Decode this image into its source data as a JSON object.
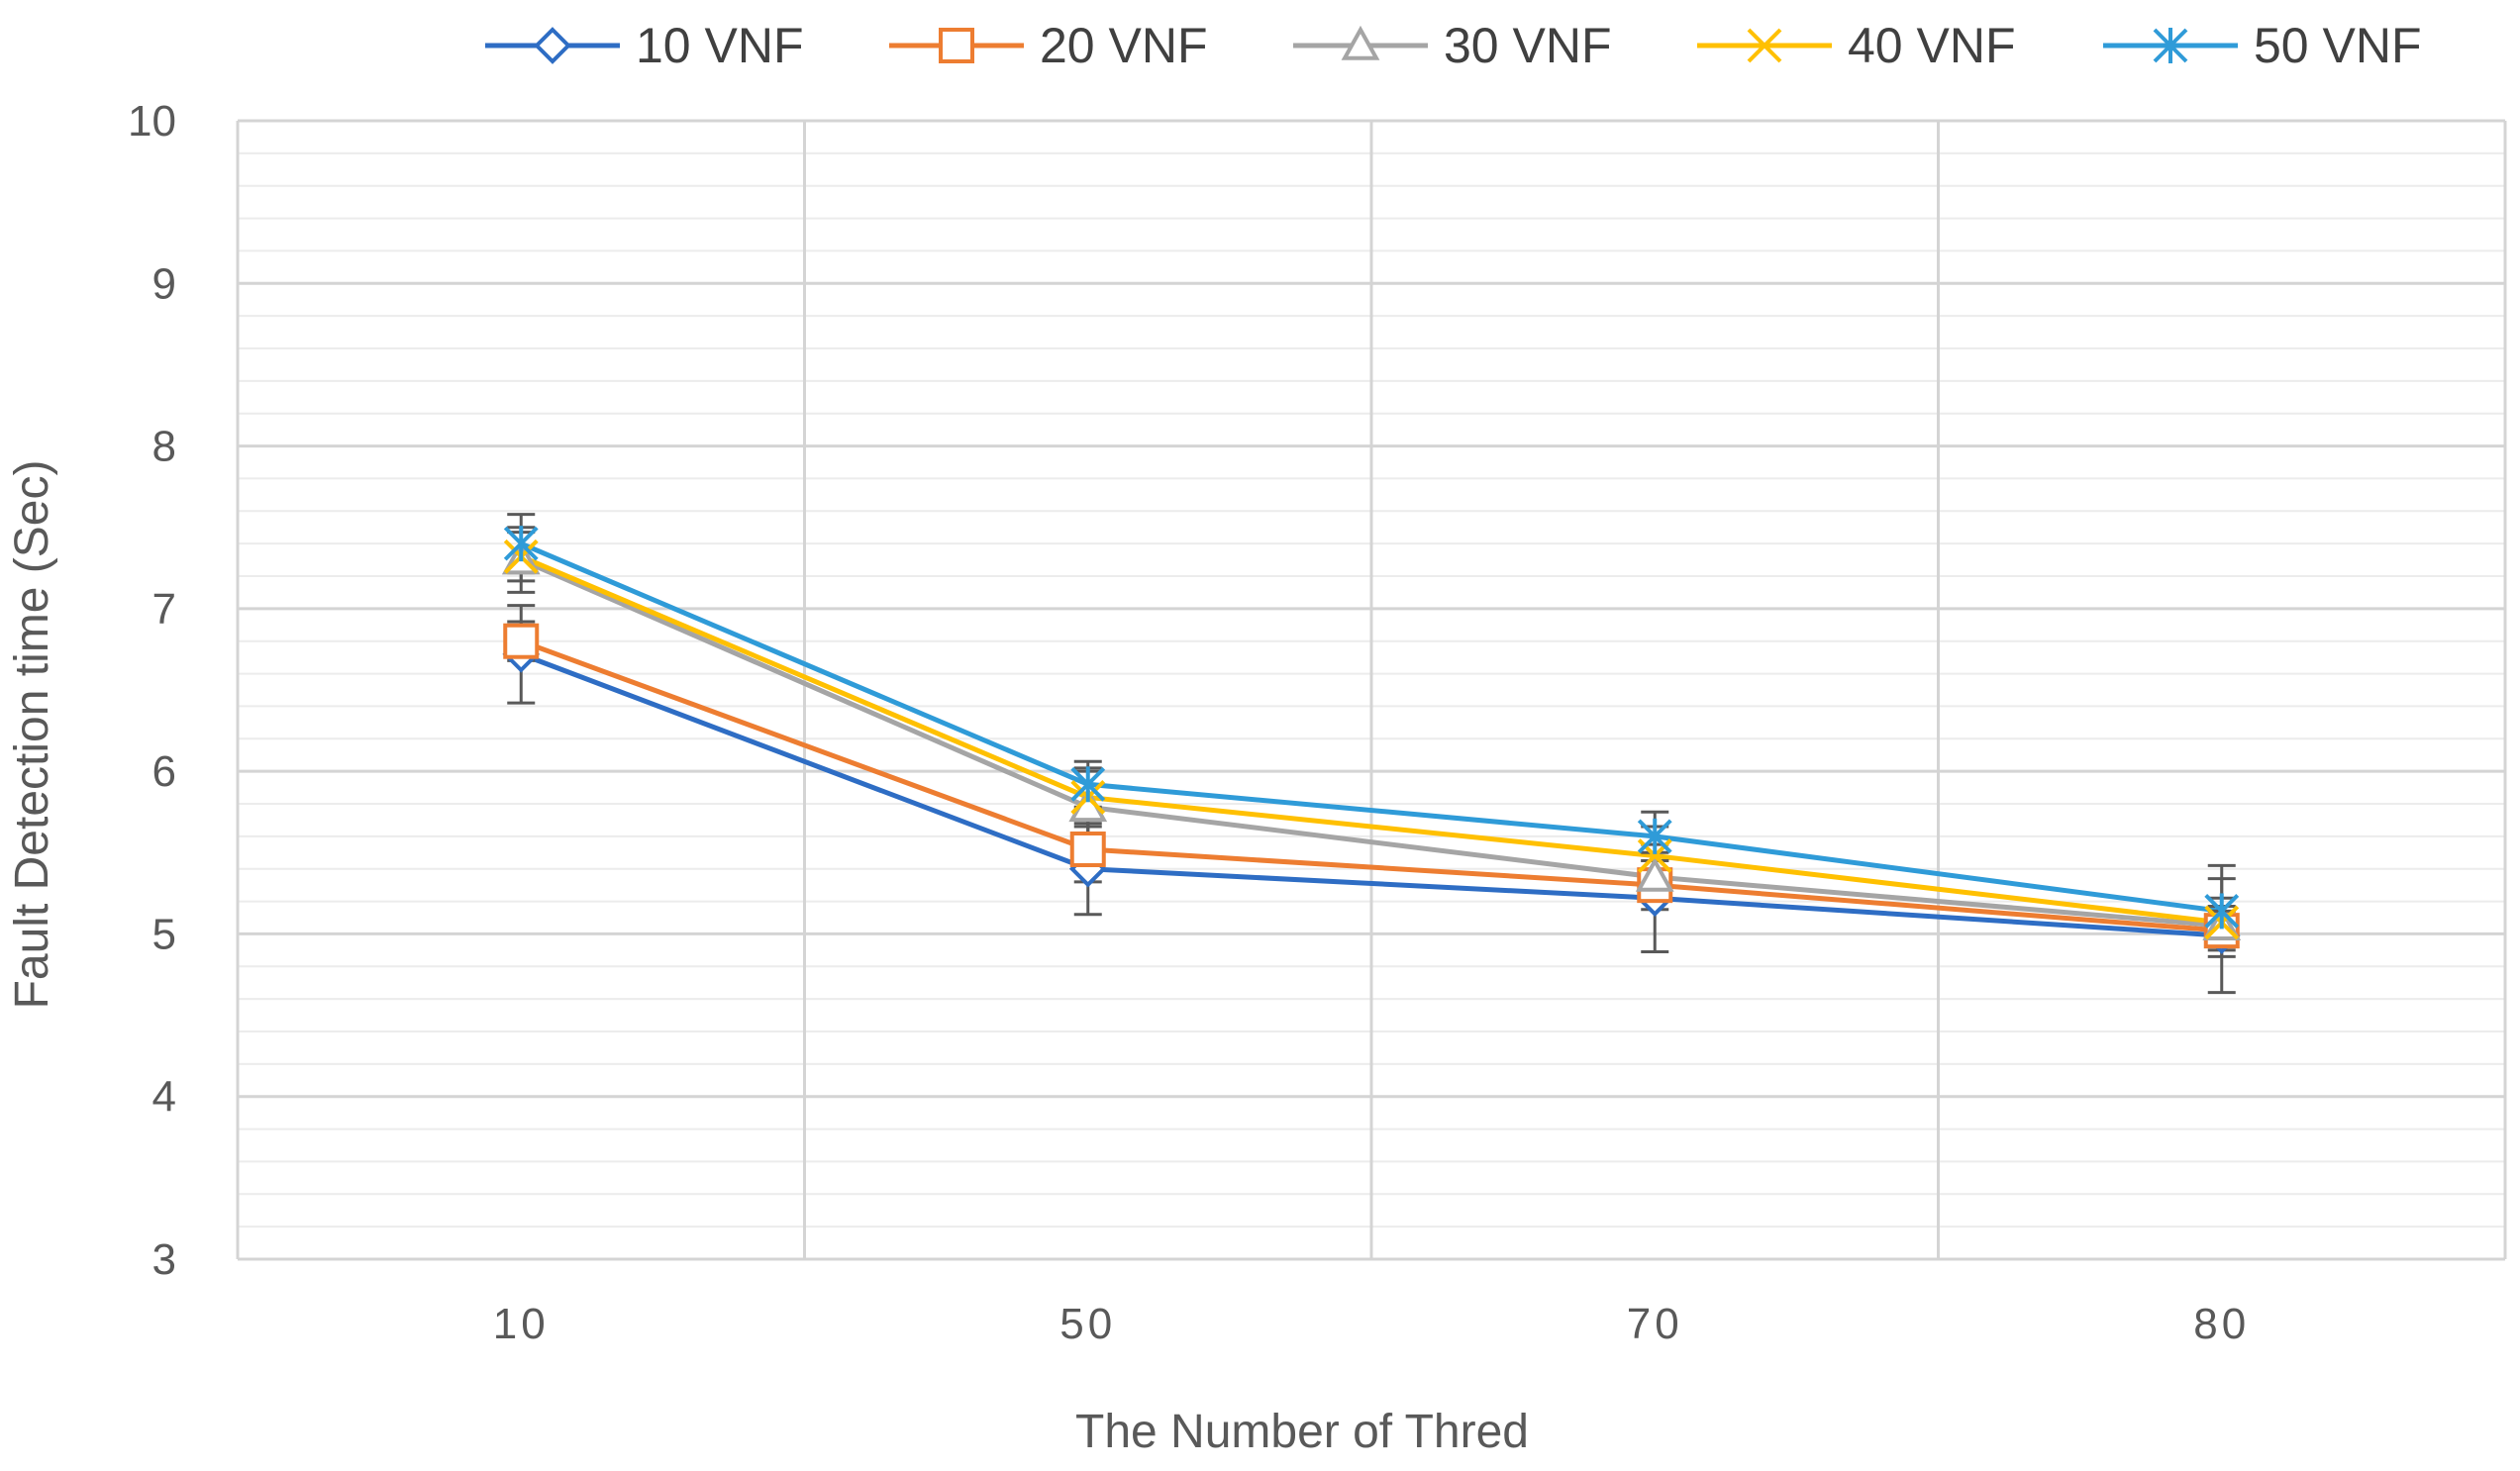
{
  "chart_data": {
    "type": "line",
    "title": "",
    "xlabel": "The Number of Thred",
    "ylabel": "Fault Detection time (Sec)",
    "categories": [
      "10",
      "50",
      "70",
      "80"
    ],
    "ylim": [
      3,
      10
    ],
    "yticks": [
      "3",
      "4",
      "5",
      "6",
      "7",
      "8",
      "9",
      "10"
    ],
    "grid": true,
    "legend_position": "top",
    "series": [
      {
        "name": "10 VNF",
        "color": "#2E6DC4",
        "marker": "diamond",
        "values": [
          6.72,
          5.4,
          5.22,
          4.99
        ],
        "error": [
          0.3,
          0.28,
          0.33,
          0.35
        ]
      },
      {
        "name": "20 VNF",
        "color": "#ED7D31",
        "marker": "square",
        "values": [
          6.8,
          5.52,
          5.3,
          5.02
        ],
        "error": [
          0.12,
          0.2,
          0.15,
          0.12
        ]
      },
      {
        "name": "30 VNF",
        "color": "#A5A5A5",
        "marker": "triangle",
        "values": [
          7.3,
          5.78,
          5.35,
          5.05
        ],
        "error": [
          0.2,
          0.22,
          0.15,
          0.12
        ]
      },
      {
        "name": "40 VNF",
        "color": "#FFC000",
        "marker": "x",
        "values": [
          7.32,
          5.84,
          5.48,
          5.07
        ],
        "error": [
          0.15,
          0.18,
          0.18,
          0.15
        ]
      },
      {
        "name": "50 VNF",
        "color": "#2F9BD8",
        "marker": "star",
        "values": [
          7.4,
          5.92,
          5.6,
          5.14
        ],
        "error": [
          0.18,
          0.14,
          0.15,
          0.28
        ]
      }
    ]
  }
}
